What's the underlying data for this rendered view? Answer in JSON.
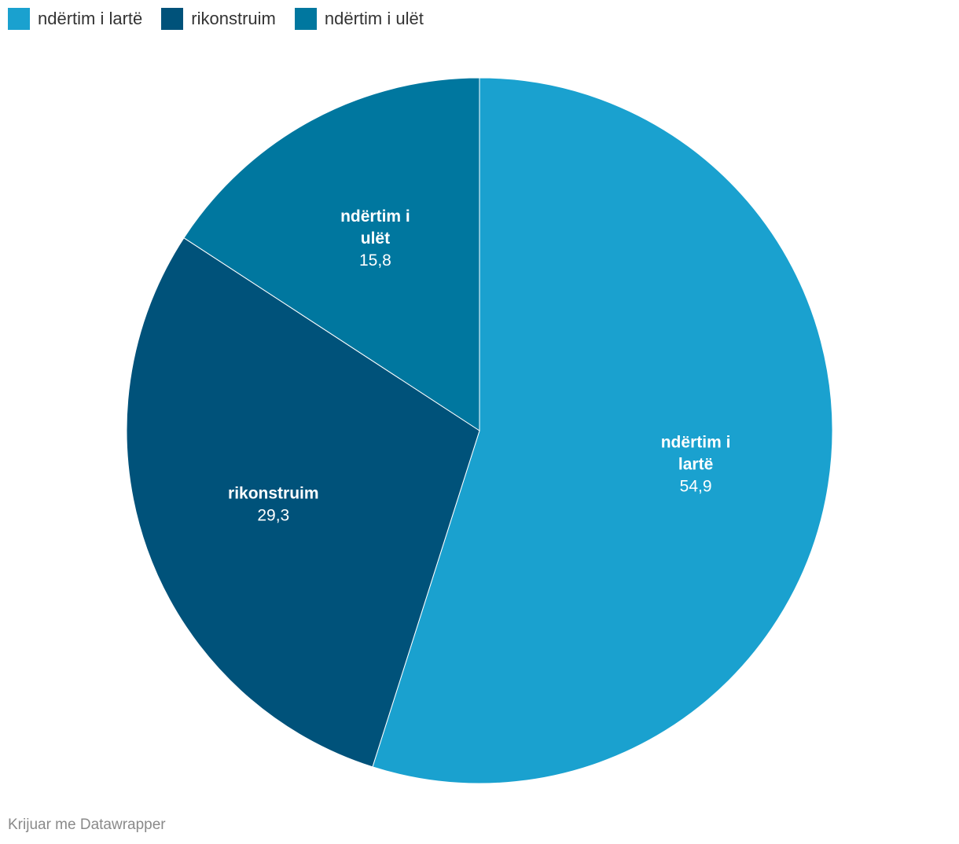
{
  "chart_data": {
    "type": "pie",
    "slices": [
      {
        "label": "ndërtim i lartë",
        "value": 54.9,
        "value_text": "54,9",
        "color": "#1aa1cf",
        "label_lines": [
          "ndërtim i",
          "lartë"
        ]
      },
      {
        "label": "rikonstruim",
        "value": 29.3,
        "value_text": "29,3",
        "color": "#00527a",
        "label_lines": [
          "rikonstruim"
        ]
      },
      {
        "label": "ndërtim i ulët",
        "value": 15.8,
        "value_text": "15,8",
        "color": "#00779f",
        "label_lines": [
          "ndërtim i",
          "ulët"
        ]
      }
    ],
    "legend_position": "top-left"
  },
  "legend": {
    "items": [
      {
        "label": "ndërtim i lartë",
        "color": "#1aa1cf"
      },
      {
        "label": "rikonstruim",
        "color": "#00527a"
      },
      {
        "label": "ndërtim i ulët",
        "color": "#00779f"
      }
    ]
  },
  "footer": {
    "credit": "Krijuar me Datawrapper"
  }
}
